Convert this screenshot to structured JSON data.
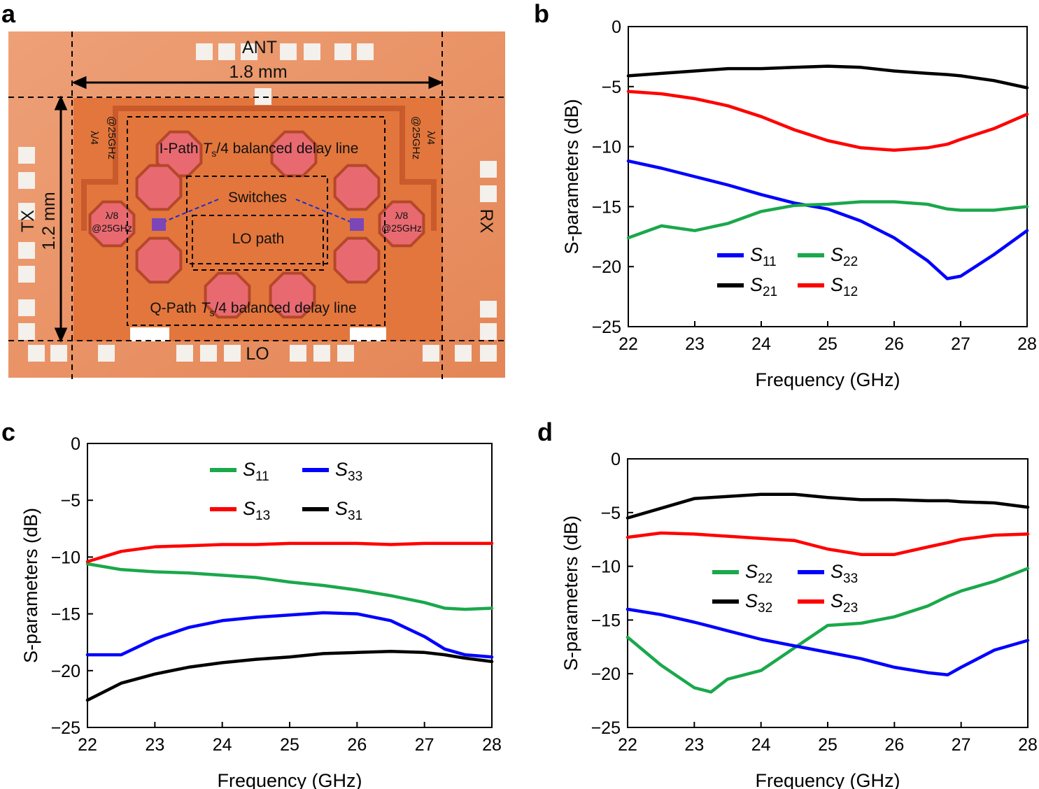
{
  "panels": {
    "a": {
      "label": "a",
      "texts": {
        "ant": "ANT",
        "width": "1.8 mm",
        "height": "1.2 mm",
        "tx": "TX",
        "rx": "RX",
        "lo": "LO",
        "ipath_pre": "I-Path ",
        "ipath_post": "/4 balanced delay line",
        "qpath_pre": "Q-Path ",
        "qpath_post": "/4 balanced delay line",
        "ts_T": "T",
        "ts_s": "s",
        "switches": "Switches",
        "lopath": "LO path",
        "lambda8": "λ/8",
        "at25": "@25GHz",
        "lambda4": "λ/4",
        "at25b": "@25GHz"
      },
      "colors": {
        "chip": "#e98a58",
        "core": "#e3763c",
        "pad": "#f4f0ec",
        "inductor": "#e86a70"
      }
    },
    "b": {
      "label": "b"
    },
    "c": {
      "label": "c"
    },
    "d": {
      "label": "d"
    }
  },
  "chart_data": [
    {
      "panel": "b",
      "type": "line",
      "xlabel": "Frequency (GHz)",
      "ylabel": "S-parameters (dB)",
      "xlim": [
        22,
        28
      ],
      "ylim": [
        -25,
        0
      ],
      "xticks": [
        "22",
        "23",
        "24",
        "25",
        "26",
        "27",
        "28"
      ],
      "yticks": [
        "0",
        "−5",
        "−10",
        "−15",
        "−20",
        "−25"
      ],
      "x": [
        22,
        22.5,
        23,
        23.5,
        24,
        24.5,
        25,
        25.5,
        26,
        26.5,
        26.8,
        27,
        27.5,
        28
      ],
      "series": [
        {
          "name": "S",
          "sub": "11",
          "color": "#0000ff",
          "values": [
            -11.2,
            -11.8,
            -12.5,
            -13.2,
            -14.0,
            -14.7,
            -15.2,
            -16.2,
            -17.6,
            -19.5,
            -21.0,
            -20.8,
            -19.0,
            -17.0
          ]
        },
        {
          "name": "S",
          "sub": "22",
          "color": "#1aa84b",
          "values": [
            -17.6,
            -16.6,
            -17.0,
            -16.4,
            -15.4,
            -14.9,
            -14.8,
            -14.6,
            -14.6,
            -14.8,
            -15.2,
            -15.3,
            -15.3,
            -15.0
          ]
        },
        {
          "name": "S",
          "sub": "21",
          "color": "#000000",
          "values": [
            -4.1,
            -3.9,
            -3.7,
            -3.5,
            -3.5,
            -3.4,
            -3.3,
            -3.4,
            -3.7,
            -3.9,
            -4.0,
            -4.1,
            -4.5,
            -5.1
          ]
        },
        {
          "name": "S",
          "sub": "12",
          "color": "#ff0000",
          "values": [
            -5.4,
            -5.6,
            -6.0,
            -6.6,
            -7.5,
            -8.6,
            -9.5,
            -10.1,
            -10.3,
            -10.1,
            -9.8,
            -9.4,
            -8.5,
            -7.3
          ]
        }
      ],
      "legend_order": [
        0,
        1,
        2,
        3
      ],
      "legend_placement": "lower-middle"
    },
    {
      "panel": "c",
      "type": "line",
      "xlabel": "Frequency (GHz)",
      "ylabel": "S-parameters (dB)",
      "xlim": [
        22,
        28
      ],
      "ylim": [
        -25,
        0
      ],
      "xticks": [
        "22",
        "23",
        "24",
        "25",
        "26",
        "27",
        "28"
      ],
      "yticks": [
        "0",
        "−5",
        "−10",
        "−15",
        "−20",
        "−25"
      ],
      "x": [
        22,
        22.5,
        23,
        23.5,
        24,
        24.5,
        25,
        25.5,
        26,
        26.5,
        27,
        27.3,
        27.6,
        28
      ],
      "series": [
        {
          "name": "S",
          "sub": "11",
          "color": "#1aa84b",
          "values": [
            -10.6,
            -11.1,
            -11.3,
            -11.4,
            -11.6,
            -11.8,
            -12.2,
            -12.5,
            -12.9,
            -13.4,
            -14.0,
            -14.5,
            -14.6,
            -14.5
          ]
        },
        {
          "name": "S",
          "sub": "33",
          "color": "#0000ff",
          "values": [
            -18.6,
            -18.6,
            -17.2,
            -16.2,
            -15.6,
            -15.3,
            -15.1,
            -14.9,
            -15.0,
            -15.6,
            -17.0,
            -18.1,
            -18.6,
            -18.8
          ]
        },
        {
          "name": "S",
          "sub": "13",
          "color": "#ff0000",
          "values": [
            -10.4,
            -9.5,
            -9.1,
            -9.0,
            -8.9,
            -8.9,
            -8.8,
            -8.8,
            -8.8,
            -8.9,
            -8.8,
            -8.8,
            -8.8,
            -8.8
          ]
        },
        {
          "name": "S",
          "sub": "31",
          "color": "#000000",
          "values": [
            -22.6,
            -21.1,
            -20.3,
            -19.7,
            -19.3,
            -19.0,
            -18.8,
            -18.5,
            -18.4,
            -18.3,
            -18.4,
            -18.6,
            -18.9,
            -19.2
          ]
        }
      ],
      "legend_order": [
        0,
        1,
        2,
        3
      ],
      "legend_placement": "top-middle"
    },
    {
      "panel": "d",
      "type": "line",
      "xlabel": "Frequency (GHz)",
      "ylabel": "S-parameters (dB)",
      "xlim": [
        22,
        28
      ],
      "ylim": [
        -25,
        0
      ],
      "xticks": [
        "22",
        "23",
        "24",
        "25",
        "26",
        "27",
        "28"
      ],
      "yticks": [
        "0",
        "−5",
        "−10",
        "−15",
        "−20",
        "−25"
      ],
      "x": [
        22,
        22.5,
        23,
        23.25,
        23.5,
        24,
        24.5,
        25,
        25.5,
        26,
        26.5,
        26.8,
        27,
        27.5,
        28
      ],
      "series": [
        {
          "name": "S",
          "sub": "22",
          "color": "#1aa84b",
          "values": [
            -16.6,
            -19.2,
            -21.3,
            -21.7,
            -20.5,
            -19.7,
            -17.6,
            -15.5,
            -15.3,
            -14.7,
            -13.7,
            -12.8,
            -12.3,
            -11.4,
            -10.2
          ]
        },
        {
          "name": "S",
          "sub": "33",
          "color": "#0000ff",
          "values": [
            -14.0,
            -14.5,
            -15.2,
            -15.6,
            -16.0,
            -16.8,
            -17.4,
            -18.0,
            -18.6,
            -19.4,
            -19.9,
            -20.1,
            -19.4,
            -17.8,
            -16.9
          ]
        },
        {
          "name": "S",
          "sub": "32",
          "color": "#000000",
          "values": [
            -5.5,
            -4.6,
            -3.7,
            -3.6,
            -3.5,
            -3.3,
            -3.3,
            -3.6,
            -3.8,
            -3.8,
            -3.9,
            -3.9,
            -4.0,
            -4.1,
            -4.5
          ]
        },
        {
          "name": "S",
          "sub": "23",
          "color": "#ff0000",
          "values": [
            -7.3,
            -6.9,
            -7.0,
            -7.1,
            -7.2,
            -7.4,
            -7.6,
            -8.4,
            -8.9,
            -8.9,
            -8.2,
            -7.8,
            -7.5,
            -7.1,
            -7.0
          ]
        }
      ],
      "legend_order": [
        0,
        1,
        2,
        3
      ],
      "legend_placement": "middle"
    }
  ]
}
